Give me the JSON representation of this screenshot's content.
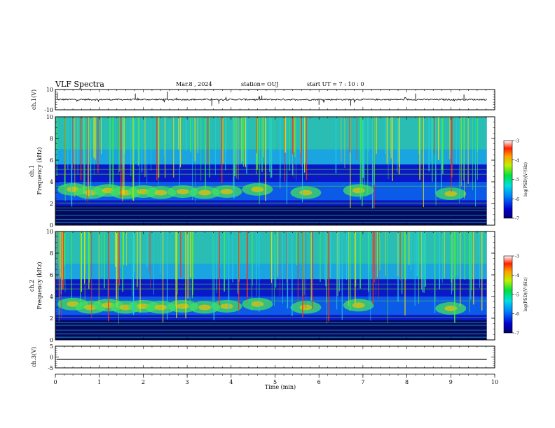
{
  "header": {
    "title": "VLF Spectra",
    "date": "Mar.8 , 2024",
    "station": "station= OUJ",
    "start": "start UT = 7 : 10 : 0"
  },
  "chart_data": [
    {
      "type": "line",
      "ylabel": "ch.1(V)",
      "ylim": [
        -10,
        10
      ],
      "yticks": [
        "10",
        "-10"
      ],
      "description_series": "noisy waveform near zero with sparse spikes"
    },
    {
      "type": "heatmap",
      "ylabel": "ch.1  Frequency (kHz)",
      "ylim": [
        0,
        10
      ],
      "yticks": [
        "0",
        "2",
        "4",
        "6",
        "8",
        "10"
      ],
      "colorbar": {
        "label": "log(PSD)(V²/Hz)",
        "range": [
          -7,
          -3
        ],
        "ticks": [
          "-3",
          "-4",
          "-5",
          "-6",
          "-7"
        ]
      }
    },
    {
      "type": "heatmap",
      "ylabel": "ch.2  Frequency (kHz)",
      "ylim": [
        0,
        10
      ],
      "yticks": [
        "0",
        "2",
        "4",
        "6",
        "8",
        "10"
      ],
      "colorbar": {
        "label": "log(PSD)(V²/Hz)",
        "range": [
          -7,
          -3
        ],
        "ticks": [
          "-3",
          "-4",
          "-5",
          "-6",
          "-7"
        ]
      }
    },
    {
      "type": "line",
      "ylabel": "ch.3(V)",
      "ylim": [
        -5,
        5
      ],
      "yticks": [
        "5",
        "0",
        "-5"
      ],
      "value": -1
    }
  ],
  "xaxis": {
    "label": "Time (min)",
    "range": [
      0,
      10
    ],
    "ticks": [
      "0",
      "1",
      "2",
      "3",
      "4",
      "5",
      "6",
      "7",
      "8",
      "9",
      "10"
    ]
  }
}
